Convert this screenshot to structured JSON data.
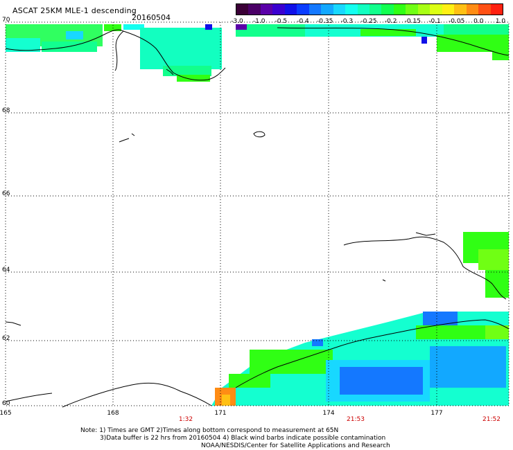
{
  "header": {
    "title": "ASCAT 25KM MLE-1 descending",
    "date": "20160504"
  },
  "colorbar": {
    "colors": [
      "#3a0036",
      "#4a0066",
      "#5a00a8",
      "#3a00d0",
      "#1010e8",
      "#0a3cff",
      "#1478ff",
      "#12a8ff",
      "#18d8ff",
      "#14fff0",
      "#12ffc0",
      "#12ff8c",
      "#12ff50",
      "#30ff14",
      "#70ff14",
      "#a8ff14",
      "#dcff14",
      "#fff014",
      "#ffc014",
      "#ff8c14",
      "#ff5014",
      "#ff2010"
    ],
    "labels": [
      "-3.0",
      "-1.0",
      "-0.5",
      "-0.4",
      "-0.35",
      "-0.3",
      "-0.25",
      "-0.2",
      "-0.15",
      "-0.1",
      "-0.05",
      "0.0",
      "1.0"
    ]
  },
  "axes": {
    "lat_labels": [
      "70",
      "68",
      "66",
      "64",
      "62",
      "60"
    ],
    "lon_labels": [
      "165",
      "168",
      "171",
      "174",
      "177"
    ],
    "time_labels": [
      "1:32",
      "21:53",
      "21:52"
    ]
  },
  "notes": {
    "line1": "Note: 1) Times are GMT 2)Times along bottom correspond to measurement at 65N",
    "line2": "3)Data buffer is 22 hrs from 20160504 4) Black wind barbs indicate possible contamination",
    "line3": "NOAA/NESDIS/Center for Satellite Applications and Research"
  }
}
